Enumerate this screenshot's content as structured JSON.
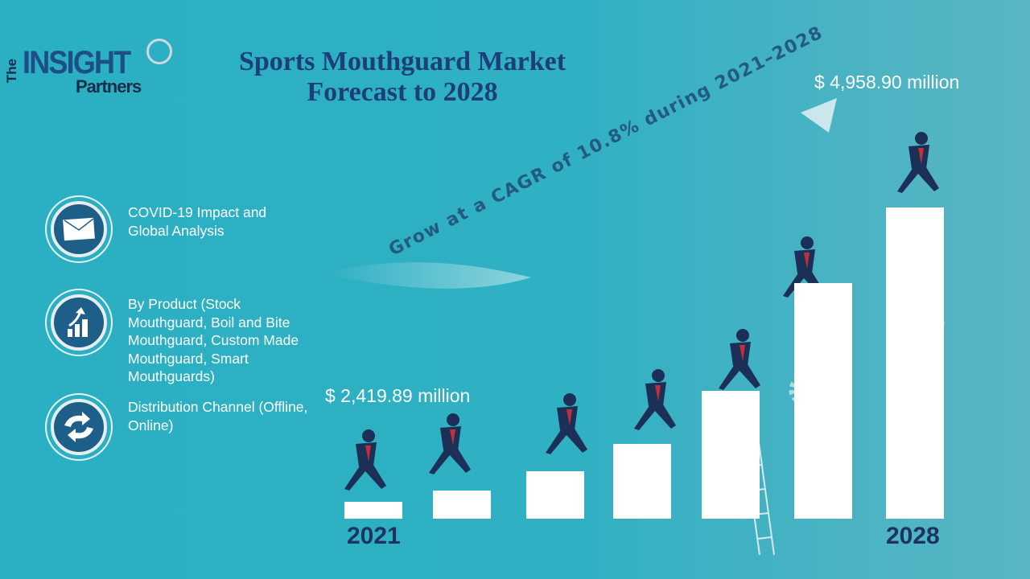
{
  "logo": {
    "the": "The",
    "insight": "INSIGHT",
    "partners": "Partners"
  },
  "title": {
    "line1": "Sports Mouthguard Market",
    "line2": "Forecast to 2028"
  },
  "items": [
    {
      "icon": "envelope-icon",
      "text": "COVID-19 Impact and Global Analysis"
    },
    {
      "icon": "growth-chart-icon",
      "text": "By Product (Stock Mouthguard, Boil and Bite Mouthguard, Custom Made Mouthguard, Smart Mouthguards)"
    },
    {
      "icon": "exchange-arrows-icon",
      "text": "Distribution Channel (Offline, Online)"
    }
  ],
  "start": {
    "year": "2021",
    "value": "$ 2,419.89 million"
  },
  "end": {
    "year": "2028",
    "value": "$ 4,958.90 million"
  },
  "cagr": "Grow at a CAGR of 10.8% during 2021–2028",
  "colors": {
    "background": "#2aafc3",
    "title": "#1c3f7a",
    "figures": "#1b2f57",
    "tie": "#c0303a"
  }
}
